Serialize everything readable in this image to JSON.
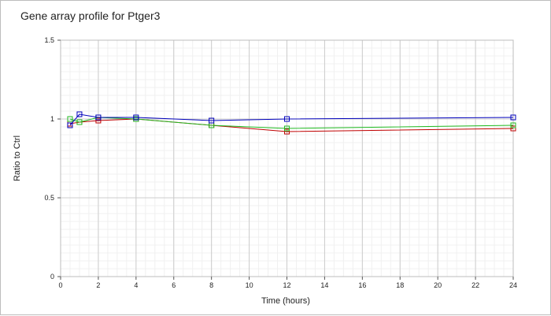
{
  "chart_data": {
    "type": "line",
    "title": "Gene array profile for Ptger3",
    "xlabel": "Time (hours)",
    "ylabel": "Ratio to Ctrl",
    "xlim": [
      0,
      24
    ],
    "ylim": [
      0,
      1.5
    ],
    "x_ticks": [
      "0",
      "2",
      "4",
      "6",
      "8",
      "10",
      "12",
      "14",
      "16",
      "18",
      "20",
      "22",
      "24"
    ],
    "y_ticks": [
      "0",
      "0.5",
      "1",
      "1.5"
    ],
    "grid": true,
    "series": [
      {
        "color": "#c00000",
        "x": [
          0.5,
          1,
          2,
          4,
          8,
          12,
          24
        ],
        "y": [
          0.97,
          0.98,
          0.99,
          1.0,
          0.96,
          0.92,
          0.94
        ]
      },
      {
        "color": "#22bb22",
        "x": [
          0.5,
          1,
          2,
          4,
          8,
          12,
          24
        ],
        "y": [
          1.0,
          0.98,
          1.01,
          1.0,
          0.96,
          0.94,
          0.96
        ]
      },
      {
        "color": "#0000bb",
        "x": [
          0.5,
          1,
          2,
          4,
          8,
          12,
          24
        ],
        "y": [
          0.96,
          1.03,
          1.01,
          1.01,
          0.99,
          1.0,
          1.01
        ]
      }
    ]
  }
}
